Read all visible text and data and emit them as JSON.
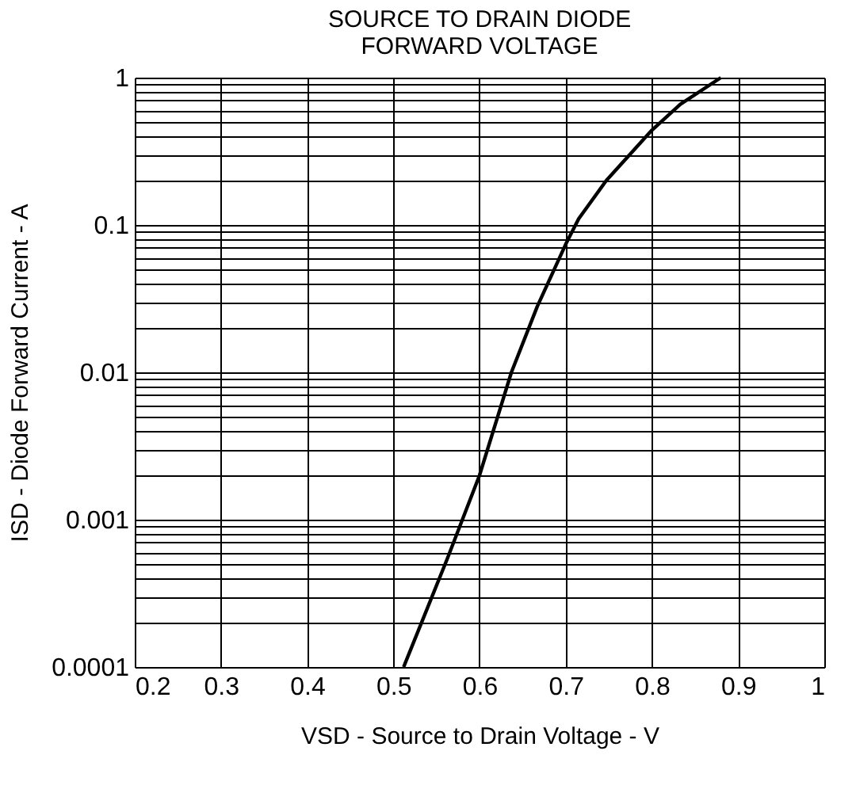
{
  "chart_data": {
    "type": "line",
    "title": "SOURCE TO DRAIN DIODE\nFORWARD VOLTAGE",
    "xlabel": "VSD - Source to Drain Voltage - V",
    "ylabel": "ISD - Diode Forward Current - A",
    "x": [
      0.512,
      0.563,
      0.6,
      0.637,
      0.667,
      0.7,
      0.715,
      0.747,
      0.8,
      0.833,
      0.88
    ],
    "series": [
      {
        "color": "#000000",
        "values": [
          0.0001,
          0.00055,
          0.002,
          0.01,
          0.028,
          0.074,
          0.11,
          0.2,
          0.44,
          0.66,
          1
        ]
      }
    ],
    "xlim": [
      0.2,
      1
    ],
    "xticks": [
      0.2,
      0.3,
      0.4,
      0.5,
      0.6,
      0.7,
      0.8,
      0.9,
      1
    ],
    "ylim": [
      0.0001,
      1
    ],
    "yticks": [
      0.0001,
      0.001,
      0.01,
      0.1,
      1
    ],
    "log": "y",
    "grid": true,
    "line_style": "solid",
    "marker": "none",
    "legend": false
  }
}
